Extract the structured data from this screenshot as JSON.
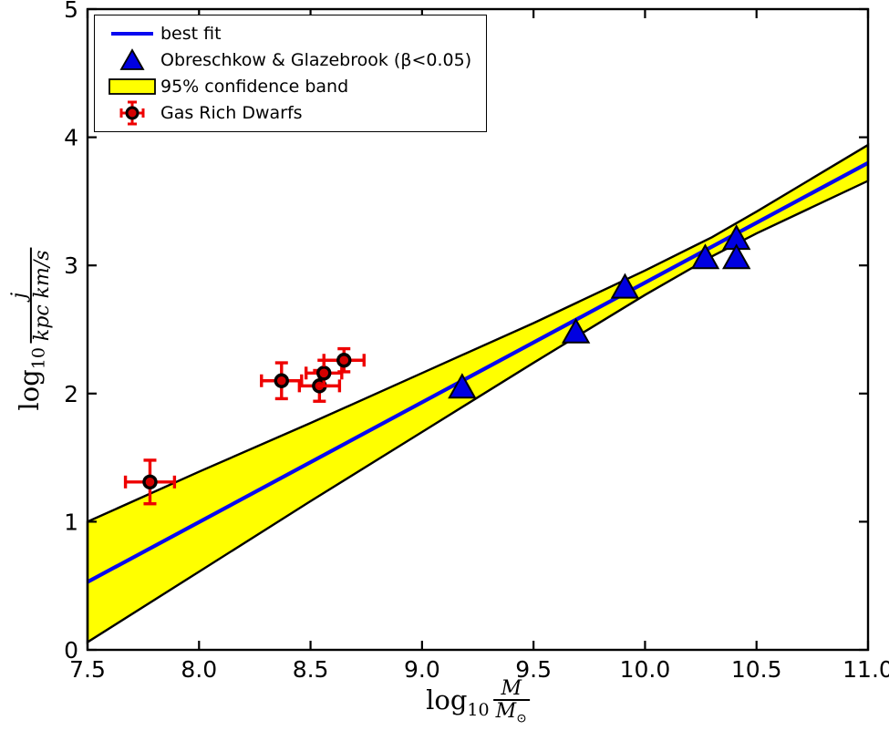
{
  "chart_data": {
    "type": "scatter",
    "title": "",
    "xlabel": {
      "log": "log",
      "sub": "10",
      "num": "M",
      "den": "M",
      "den_sub": "⊙"
    },
    "ylabel": {
      "log": "log",
      "sub": "10",
      "num": "j",
      "den": "kpc km/s"
    },
    "xlim": [
      7.5,
      11.0
    ],
    "ylim": [
      0,
      5
    ],
    "xticks": {
      "values": [
        7.5,
        8.0,
        8.5,
        9.0,
        9.5,
        10.0,
        10.5,
        11.0
      ],
      "labels": [
        "7.5",
        "8.0",
        "8.5",
        "9.0",
        "9.5",
        "10.0",
        "10.5",
        "11.0"
      ]
    },
    "yticks": {
      "values": [
        0,
        1,
        2,
        3,
        4,
        5
      ],
      "labels": [
        "0",
        "1",
        "2",
        "3",
        "4",
        "5"
      ]
    },
    "grid": false,
    "colors": {
      "best_fit_line": "#0808f0",
      "triangle_fill": "#0000e0",
      "band_fill": "#ffff00",
      "errorbar": "#ee0000",
      "marker_fill": "#d40000",
      "edge": "#000000"
    },
    "best_fit": {
      "x": [
        7.5,
        11.0
      ],
      "y": [
        0.53,
        3.8
      ]
    },
    "confidence_band": {
      "x": [
        7.5,
        8.0,
        8.5,
        9.0,
        9.5,
        10.0,
        10.3,
        10.5,
        11.0
      ],
      "top": [
        1.0,
        1.39,
        1.77,
        2.16,
        2.55,
        2.96,
        3.22,
        3.42,
        3.94
      ],
      "bottom": [
        0.06,
        0.61,
        1.16,
        1.7,
        2.24,
        2.77,
        3.07,
        3.25,
        3.66
      ]
    },
    "triangles": [
      [
        9.18,
        2.05
      ],
      [
        9.69,
        2.48
      ],
      [
        9.91,
        2.83
      ],
      [
        10.27,
        3.06
      ],
      [
        10.41,
        3.21
      ],
      [
        10.41,
        3.06
      ]
    ],
    "gas_rich_dwarfs": [
      {
        "x": 7.78,
        "y": 1.31,
        "xerr": 0.11,
        "yerr": 0.17
      },
      {
        "x": 8.37,
        "y": 2.1,
        "xerr": 0.09,
        "yerr": 0.14
      },
      {
        "x": 8.54,
        "y": 2.06,
        "xerr": 0.09,
        "yerr": 0.12
      },
      {
        "x": 8.56,
        "y": 2.16,
        "xerr": 0.08,
        "yerr": 0.1
      },
      {
        "x": 8.65,
        "y": 2.26,
        "xerr": 0.09,
        "yerr": 0.09
      }
    ],
    "legend": {
      "position": "upper left",
      "items": [
        {
          "label": "best fit",
          "swatch": "line"
        },
        {
          "label": "Obreschkow & Glazebrook (β<0.05)",
          "swatch": "triangle"
        },
        {
          "label": "95% confidence band",
          "swatch": "band"
        },
        {
          "label": "Gas Rich Dwarfs",
          "swatch": "errorbar"
        }
      ]
    }
  }
}
